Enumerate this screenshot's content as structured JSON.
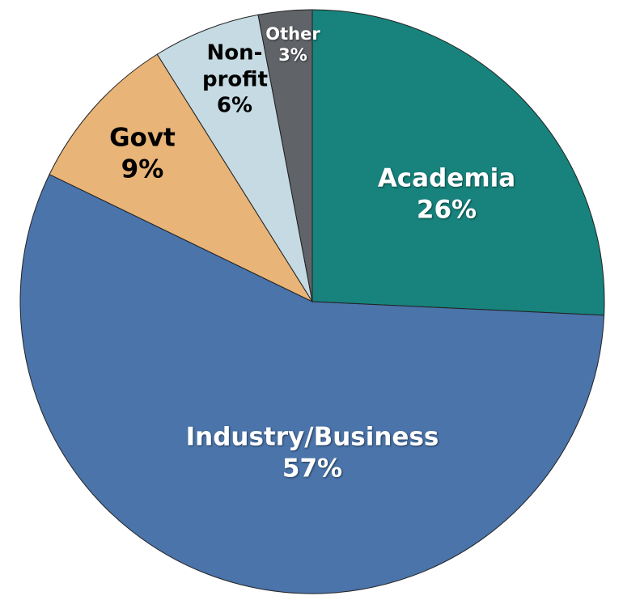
{
  "chart_data": {
    "type": "pie",
    "categories": [
      "Academia",
      "Industry/Business",
      "Govt",
      "Non-profit",
      "Other"
    ],
    "values": [
      26,
      57,
      9,
      6,
      3
    ],
    "value_labels": [
      "26%",
      "57%",
      "9%",
      "6%",
      "3%"
    ],
    "colors": [
      "#17837c",
      "#4a74aa",
      "#e8b478",
      "#c5dae2",
      "#606368"
    ]
  }
}
